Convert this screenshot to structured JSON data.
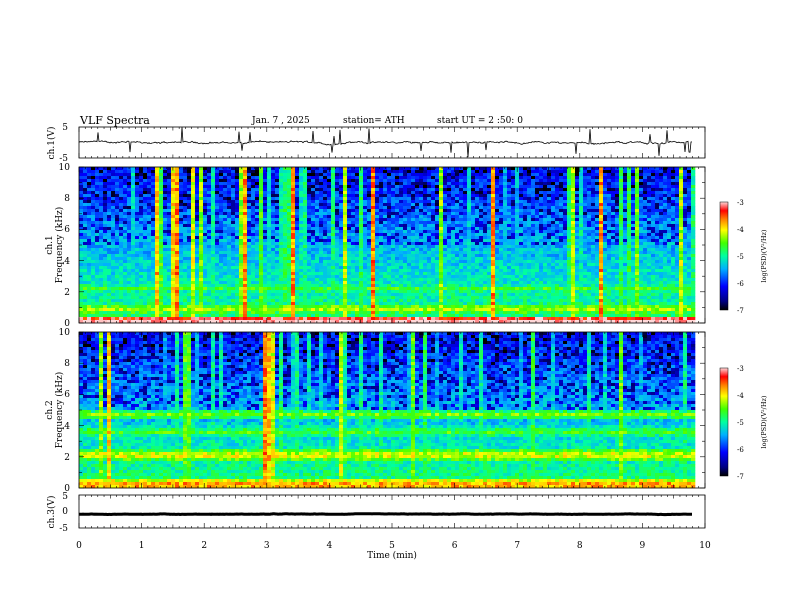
{
  "header": {
    "title": "VLF  Spectra",
    "date": "Jan.  7  , 2025",
    "station": "station= ATH",
    "start_ut": "start  UT  =   2  :50:  0"
  },
  "colors": {
    "axis": "#000000",
    "trace": "#000000",
    "colormap": [
      "#000000",
      "#0000c8",
      "#1060ff",
      "#00c0ff",
      "#00ffb0",
      "#50ff00",
      "#ffff00",
      "#ff8000",
      "#ff0000",
      "#ffffff"
    ]
  },
  "chart_data": [
    {
      "type": "line",
      "panel": "ch1-waveform",
      "ylabel": "ch.1(V)",
      "ylim": [
        -5,
        5
      ],
      "yticks": [
        "5",
        "-5"
      ],
      "xlim": [
        0,
        10
      ],
      "x_extent": [
        0,
        9.8
      ],
      "baseline": 0,
      "noise_amplitude": 0.6
    },
    {
      "type": "heatmap",
      "panel": "ch1-spectrogram",
      "ylabel_line1": "ch.1",
      "ylabel_line2": "Frequency (kHz)",
      "xlim": [
        0,
        10
      ],
      "ylim": [
        0,
        10
      ],
      "yticks": [
        "0",
        "2",
        "4",
        "6",
        "8",
        "10"
      ],
      "x_extent": [
        0,
        9.8
      ],
      "color_scale": {
        "label": "log(PSD)(V²/Hz)",
        "range": [
          -7,
          -3
        ],
        "ticks": [
          "-3",
          "-4",
          "-5",
          "-6",
          "-7"
        ]
      },
      "bands": [
        {
          "freq_khz": 0.1,
          "level": -2.9
        },
        {
          "freq_khz": 0.9,
          "level": -4.2
        },
        {
          "freq_khz": 2.2,
          "level": -4.6
        },
        {
          "freq_khz": 3.6,
          "level": -5.3
        },
        {
          "freq_khz": 4.7,
          "level": -5.6
        }
      ]
    },
    {
      "type": "heatmap",
      "panel": "ch2-spectrogram",
      "ylabel_line1": "ch.2",
      "ylabel_line2": "Frequency (kHz)",
      "xlim": [
        0,
        10
      ],
      "ylim": [
        0,
        10
      ],
      "yticks": [
        "0",
        "2",
        "4",
        "6",
        "8",
        "10"
      ],
      "x_extent": [
        0,
        9.8
      ],
      "color_scale": {
        "label": "log(PSD)(V²/Hz)",
        "range": [
          -7,
          -3
        ],
        "ticks": [
          "-3",
          "-4",
          "-5",
          "-6",
          "-7"
        ]
      },
      "bands": [
        {
          "freq_khz": 0.2,
          "level": -3.6
        },
        {
          "freq_khz": 2.1,
          "level": -4.0
        },
        {
          "freq_khz": 3.6,
          "level": -4.5
        },
        {
          "freq_khz": 4.7,
          "level": -4.4
        }
      ]
    },
    {
      "type": "line",
      "panel": "ch3-waveform",
      "ylabel": "ch.3(V)",
      "ylim": [
        -5,
        5
      ],
      "yticks": [
        "5",
        "0",
        "-5"
      ],
      "xlim": [
        0,
        10
      ],
      "x_extent": [
        0,
        9.8
      ],
      "baseline": -0.8,
      "noise_amplitude": 0.1,
      "xlabel": "Time  (min)",
      "xticks": [
        "0",
        "1",
        "2",
        "3",
        "4",
        "5",
        "6",
        "7",
        "8",
        "9",
        "10"
      ]
    }
  ]
}
